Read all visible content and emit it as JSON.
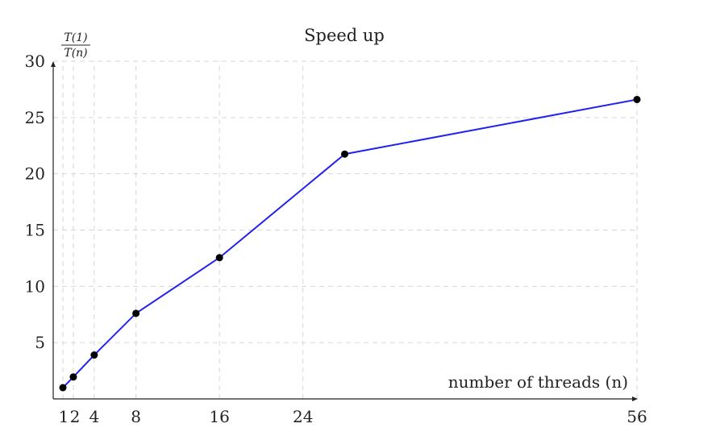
{
  "chart_data": {
    "type": "line",
    "title": "Speed up",
    "xlabel": "number of threads (n)",
    "ylabel": {
      "numerator": "T(1)",
      "denominator": "T(n)"
    },
    "x_ticks": [
      1,
      2,
      4,
      8,
      16,
      24,
      56
    ],
    "y_ticks": [
      5,
      10,
      15,
      20,
      25,
      30
    ],
    "xlim": [
      0,
      56
    ],
    "ylim": [
      0,
      30
    ],
    "grid": true,
    "series": [
      {
        "color": "#2222ee",
        "marker_color": "#000000",
        "x": [
          1,
          2,
          4,
          8,
          16,
          28,
          56
        ],
        "y": [
          1.0,
          1.95,
          3.9,
          7.6,
          12.55,
          21.75,
          26.6
        ]
      }
    ]
  }
}
